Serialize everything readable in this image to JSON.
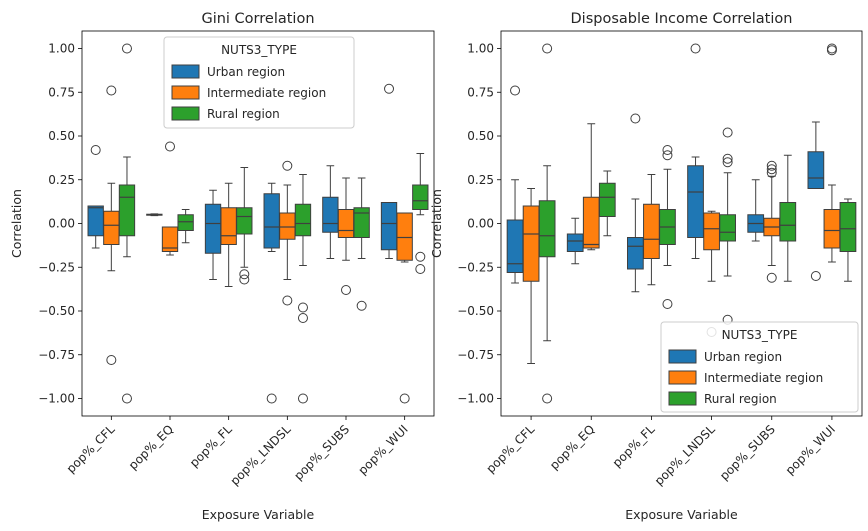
{
  "figure": {
    "background": "#ffffff"
  },
  "colors": {
    "Urban region": "#1f77b4",
    "Intermediate region": "#ff7f0e",
    "Rural region": "#2ca02c"
  },
  "chart_data": [
    {
      "type": "box",
      "title": "Gini Correlation",
      "xlabel": "Exposure Variable",
      "ylabel": "Correlation",
      "ylim": [
        -1.1,
        1.1
      ],
      "yticks": [
        1.0,
        0.75,
        0.5,
        0.25,
        0.0,
        -0.25,
        -0.5,
        -0.75,
        -1.0
      ],
      "ytick_labels": [
        "1.00",
        "0.75",
        "0.50",
        "0.25",
        "0.00",
        "−0.25",
        "−0.50",
        "−0.75",
        "−1.00"
      ],
      "categories": [
        "pop%_CFL",
        "pop%_EQ",
        "pop%_FL",
        "pop%_LNDSL",
        "pop%_SUBS",
        "pop%_WUI"
      ],
      "grid": false,
      "legend": {
        "title": "NUTS3_TYPE",
        "position": "top-center",
        "entries": [
          "Urban region",
          "Intermediate region",
          "Rural region"
        ]
      },
      "series": [
        {
          "name": "Urban region",
          "boxes": [
            {
              "whislo": -0.14,
              "q1": -0.07,
              "med": 0.09,
              "q3": 0.1,
              "whishi": 0.1,
              "fliers": [
                0.42
              ]
            },
            {
              "whislo": 0.045,
              "q1": 0.048,
              "med": 0.05,
              "q3": 0.053,
              "whishi": 0.055,
              "fliers": []
            },
            {
              "whislo": -0.32,
              "q1": -0.17,
              "med": 0.0,
              "q3": 0.11,
              "whishi": 0.19,
              "fliers": []
            },
            {
              "whislo": -0.16,
              "q1": -0.14,
              "med": -0.02,
              "q3": 0.17,
              "whishi": 0.23,
              "fliers": [
                -1.0
              ]
            },
            {
              "whislo": -0.2,
              "q1": -0.05,
              "med": 0.0,
              "q3": 0.15,
              "whishi": 0.33,
              "fliers": []
            },
            {
              "whislo": -0.2,
              "q1": -0.15,
              "med": 0.0,
              "q3": 0.12,
              "whishi": 0.12,
              "fliers": [
                0.77
              ]
            }
          ]
        },
        {
          "name": "Intermediate region",
          "boxes": [
            {
              "whislo": -0.27,
              "q1": -0.12,
              "med": -0.01,
              "q3": 0.07,
              "whishi": 0.23,
              "fliers": [
                0.76,
                -0.78
              ]
            },
            {
              "whislo": -0.18,
              "q1": -0.16,
              "med": -0.14,
              "q3": -0.02,
              "whishi": -0.02,
              "fliers": [
                0.44
              ]
            },
            {
              "whislo": -0.36,
              "q1": -0.12,
              "med": -0.07,
              "q3": 0.09,
              "whishi": 0.23,
              "fliers": []
            },
            {
              "whislo": -0.32,
              "q1": -0.09,
              "med": -0.02,
              "q3": 0.06,
              "whishi": 0.22,
              "fliers": [
                0.33,
                -0.44
              ]
            },
            {
              "whislo": -0.21,
              "q1": -0.08,
              "med": -0.04,
              "q3": 0.08,
              "whishi": 0.26,
              "fliers": [
                -0.38
              ]
            },
            {
              "whislo": -0.22,
              "q1": -0.21,
              "med": -0.08,
              "q3": 0.06,
              "whishi": 0.06,
              "fliers": [
                -1.0
              ]
            }
          ]
        },
        {
          "name": "Rural region",
          "boxes": [
            {
              "whislo": -0.19,
              "q1": -0.07,
              "med": 0.15,
              "q3": 0.22,
              "whishi": 0.38,
              "fliers": [
                1.0,
                -1.0
              ]
            },
            {
              "whislo": -0.11,
              "q1": -0.04,
              "med": 0.01,
              "q3": 0.05,
              "whishi": 0.08,
              "fliers": []
            },
            {
              "whislo": -0.25,
              "q1": -0.06,
              "med": 0.04,
              "q3": 0.09,
              "whishi": 0.32,
              "fliers": [
                -0.29,
                -0.32
              ]
            },
            {
              "whislo": -0.24,
              "q1": -0.07,
              "med": 0.0,
              "q3": 0.11,
              "whishi": 0.28,
              "fliers": [
                -0.48,
                -0.54,
                -1.0
              ]
            },
            {
              "whislo": -0.2,
              "q1": -0.08,
              "med": 0.06,
              "q3": 0.09,
              "whishi": 0.26,
              "fliers": [
                -0.47
              ]
            },
            {
              "whislo": 0.05,
              "q1": 0.08,
              "med": 0.13,
              "q3": 0.22,
              "whishi": 0.4,
              "fliers": [
                -0.19,
                -0.26
              ]
            }
          ]
        }
      ]
    },
    {
      "type": "box",
      "title": "Disposable Income Correlation",
      "xlabel": "Exposure Variable",
      "ylabel": "Correlation",
      "ylim": [
        -1.1,
        1.1
      ],
      "yticks": [
        1.0,
        0.75,
        0.5,
        0.25,
        0.0,
        -0.25,
        -0.5,
        -0.75,
        -1.0
      ],
      "ytick_labels": [
        "1.00",
        "0.75",
        "0.50",
        "0.25",
        "0.00",
        "−0.25",
        "−0.50",
        "−0.75",
        "−1.00"
      ],
      "categories": [
        "pop%_CFL",
        "pop%_EQ",
        "pop%_FL",
        "pop%_LNDSL",
        "pop%_SUBS",
        "pop%_WUI"
      ],
      "grid": false,
      "legend": {
        "title": "NUTS3_TYPE",
        "position": "lower-right",
        "entries": [
          "Urban region",
          "Intermediate region",
          "Rural region"
        ]
      },
      "series": [
        {
          "name": "Urban region",
          "boxes": [
            {
              "whislo": -0.34,
              "q1": -0.28,
              "med": -0.23,
              "q3": 0.02,
              "whishi": 0.25,
              "fliers": [
                0.76
              ]
            },
            {
              "whislo": -0.23,
              "q1": -0.16,
              "med": -0.1,
              "q3": -0.06,
              "whishi": 0.03,
              "fliers": []
            },
            {
              "whislo": -0.39,
              "q1": -0.26,
              "med": -0.13,
              "q3": -0.08,
              "whishi": 0.14,
              "fliers": [
                0.6
              ]
            },
            {
              "whislo": -0.2,
              "q1": -0.08,
              "med": 0.18,
              "q3": 0.33,
              "whishi": 0.38,
              "fliers": [
                1.0
              ]
            },
            {
              "whislo": -0.1,
              "q1": -0.05,
              "med": 0.0,
              "q3": 0.05,
              "whishi": 0.25,
              "fliers": []
            },
            {
              "whislo": 0.2,
              "q1": 0.2,
              "med": 0.26,
              "q3": 0.41,
              "whishi": 0.58,
              "fliers": [
                -0.3
              ]
            }
          ]
        },
        {
          "name": "Intermediate region",
          "boxes": [
            {
              "whislo": -0.8,
              "q1": -0.33,
              "med": -0.06,
              "q3": 0.1,
              "whishi": 0.2,
              "fliers": []
            },
            {
              "whislo": -0.15,
              "q1": -0.14,
              "med": -0.12,
              "q3": 0.15,
              "whishi": 0.57,
              "fliers": []
            },
            {
              "whislo": -0.35,
              "q1": -0.2,
              "med": -0.09,
              "q3": 0.11,
              "whishi": 0.28,
              "fliers": []
            },
            {
              "whislo": -0.33,
              "q1": -0.15,
              "med": -0.03,
              "q3": 0.06,
              "whishi": 0.07,
              "fliers": [
                -0.62
              ]
            },
            {
              "whislo": -0.24,
              "q1": -0.07,
              "med": -0.02,
              "q3": 0.03,
              "whishi": 0.27,
              "fliers": [
                0.29,
                0.31,
                0.33,
                -0.31
              ]
            },
            {
              "whislo": -0.22,
              "q1": -0.14,
              "med": -0.04,
              "q3": 0.08,
              "whishi": 0.22,
              "fliers": [
                1.0,
                0.99
              ]
            }
          ]
        },
        {
          "name": "Rural region",
          "boxes": [
            {
              "whislo": -0.67,
              "q1": -0.19,
              "med": -0.07,
              "q3": 0.13,
              "whishi": 0.33,
              "fliers": [
                1.0,
                -1.0
              ]
            },
            {
              "whislo": -0.07,
              "q1": 0.04,
              "med": 0.15,
              "q3": 0.23,
              "whishi": 0.3,
              "fliers": []
            },
            {
              "whislo": -0.24,
              "q1": -0.12,
              "med": -0.02,
              "q3": 0.08,
              "whishi": 0.31,
              "fliers": [
                0.39,
                0.42,
                -0.46
              ]
            },
            {
              "whislo": -0.3,
              "q1": -0.1,
              "med": -0.05,
              "q3": 0.05,
              "whishi": 0.29,
              "fliers": [
                0.52,
                0.37,
                0.35,
                -0.55
              ]
            },
            {
              "whislo": -0.33,
              "q1": -0.1,
              "med": -0.01,
              "q3": 0.12,
              "whishi": 0.39,
              "fliers": []
            },
            {
              "whislo": -0.33,
              "q1": -0.16,
              "med": -0.03,
              "q3": 0.12,
              "whishi": 0.14,
              "fliers": []
            }
          ]
        }
      ]
    }
  ]
}
